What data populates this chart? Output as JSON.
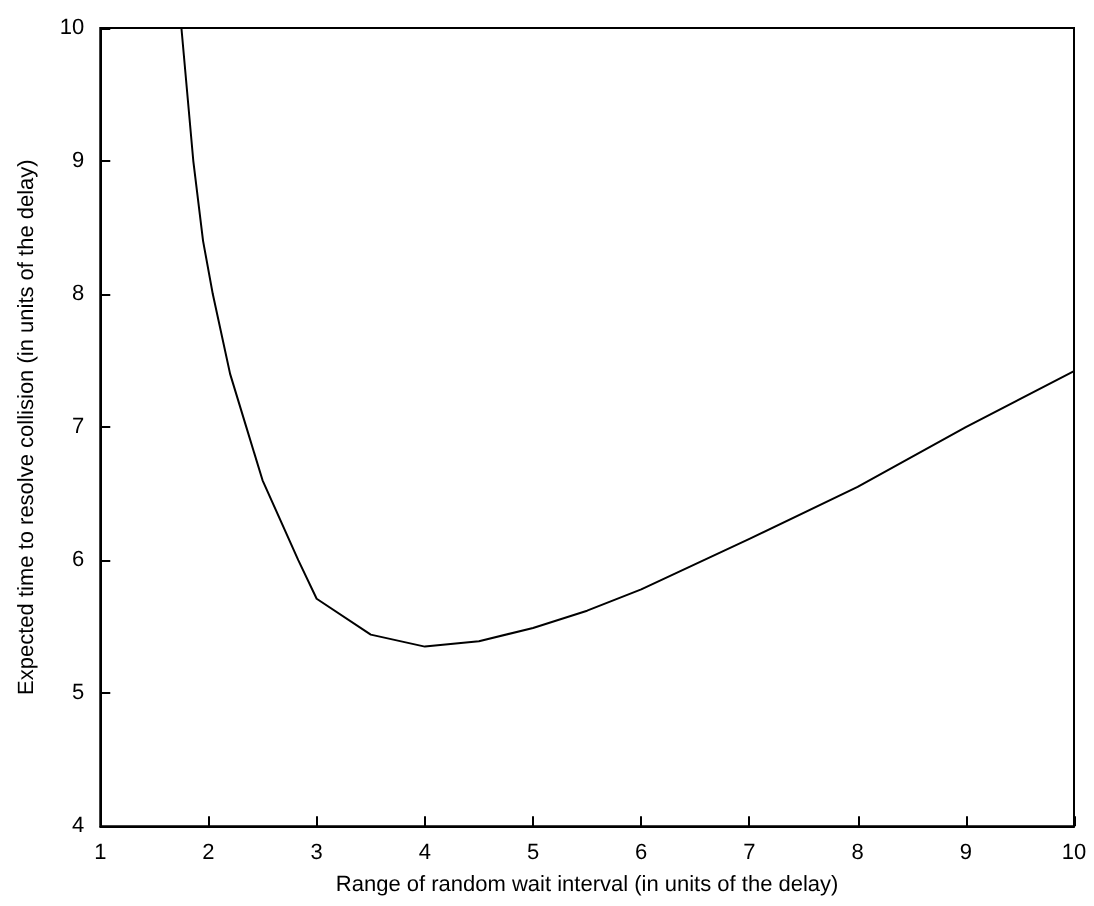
{
  "chart_data": {
    "type": "line",
    "xlabel": "Range of random wait interval (in units of the delay)",
    "ylabel": "Expected time to resolve collision (in units of the delay)",
    "x": [
      1.75,
      1.86,
      1.95,
      2.04,
      2.2,
      2.35,
      2.5,
      2.83,
      3,
      3.5,
      4,
      4.5,
      5,
      5.5,
      6,
      7,
      8,
      9,
      10
    ],
    "series": [
      {
        "color": "#000000",
        "values": [
          10,
          9,
          8.4,
          8,
          7.4,
          7,
          6.6,
          6,
          5.71,
          5.44,
          5.35,
          5.39,
          5.49,
          5.62,
          5.78,
          6.16,
          6.55,
          7.0,
          7.42
        ]
      }
    ],
    "xlim": [
      1,
      10
    ],
    "xticks": [
      1,
      2,
      3,
      4,
      5,
      6,
      7,
      8,
      9,
      10
    ],
    "ylim": [
      4,
      10
    ],
    "yticks": [
      4,
      5,
      6,
      7,
      8,
      9,
      10
    ],
    "grid": false,
    "marker": "none",
    "line_style": "solid"
  }
}
